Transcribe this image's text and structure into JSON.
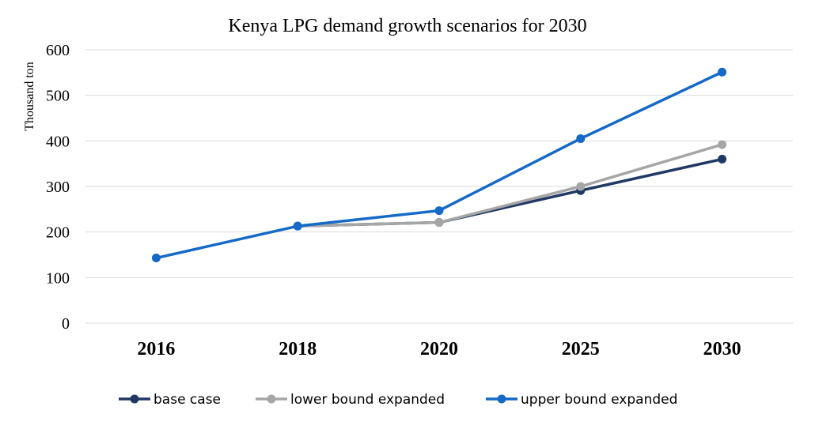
{
  "chart_data": {
    "type": "line",
    "title": "Kenya LPG demand growth scenarios for 2030",
    "ylabel": "Thousand ton",
    "xlabel": "",
    "categories": [
      "2016",
      "2018",
      "2020",
      "2025",
      "2030"
    ],
    "ylim": [
      0,
      600
    ],
    "yticks": [
      0,
      100,
      200,
      300,
      400,
      500,
      600
    ],
    "grid": true,
    "legend_position": "bottom",
    "series": [
      {
        "name": "base case",
        "color": "#1f3864",
        "values": [
          null,
          213,
          221,
          291,
          360
        ]
      },
      {
        "name": "lower bound expanded",
        "color": "#a6a6a6",
        "values": [
          null,
          213,
          221,
          300,
          392
        ]
      },
      {
        "name": "upper bound expanded",
        "color": "#1569c7",
        "values": [
          143,
          213,
          247,
          405,
          551
        ]
      }
    ]
  }
}
